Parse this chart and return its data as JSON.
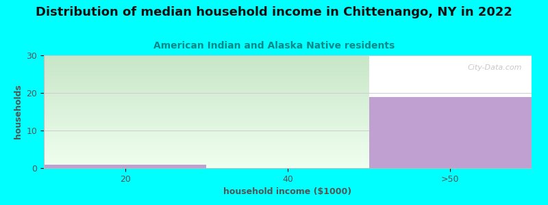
{
  "title": "Distribution of median household income in Chittenango, NY in 2022",
  "subtitle": "American Indian and Alaska Native residents",
  "xlabel": "household income ($1000)",
  "ylabel": "households",
  "background_color": "#00FFFF",
  "plot_bg_color": "#FFFFFF",
  "green_area_color": "#D8EED8",
  "bar_color": "#C0A0D0",
  "categories": [
    "20",
    "40",
    ">50"
  ],
  "values": [
    1,
    0,
    19
  ],
  "ylim": [
    0,
    30
  ],
  "yticks": [
    0,
    10,
    20,
    30
  ],
  "grid_color": "#CCCCCC",
  "title_fontsize": 13,
  "subtitle_fontsize": 10,
  "subtitle_color": "#008888",
  "axis_label_fontsize": 9,
  "tick_fontsize": 9,
  "watermark": "City-Data.com"
}
